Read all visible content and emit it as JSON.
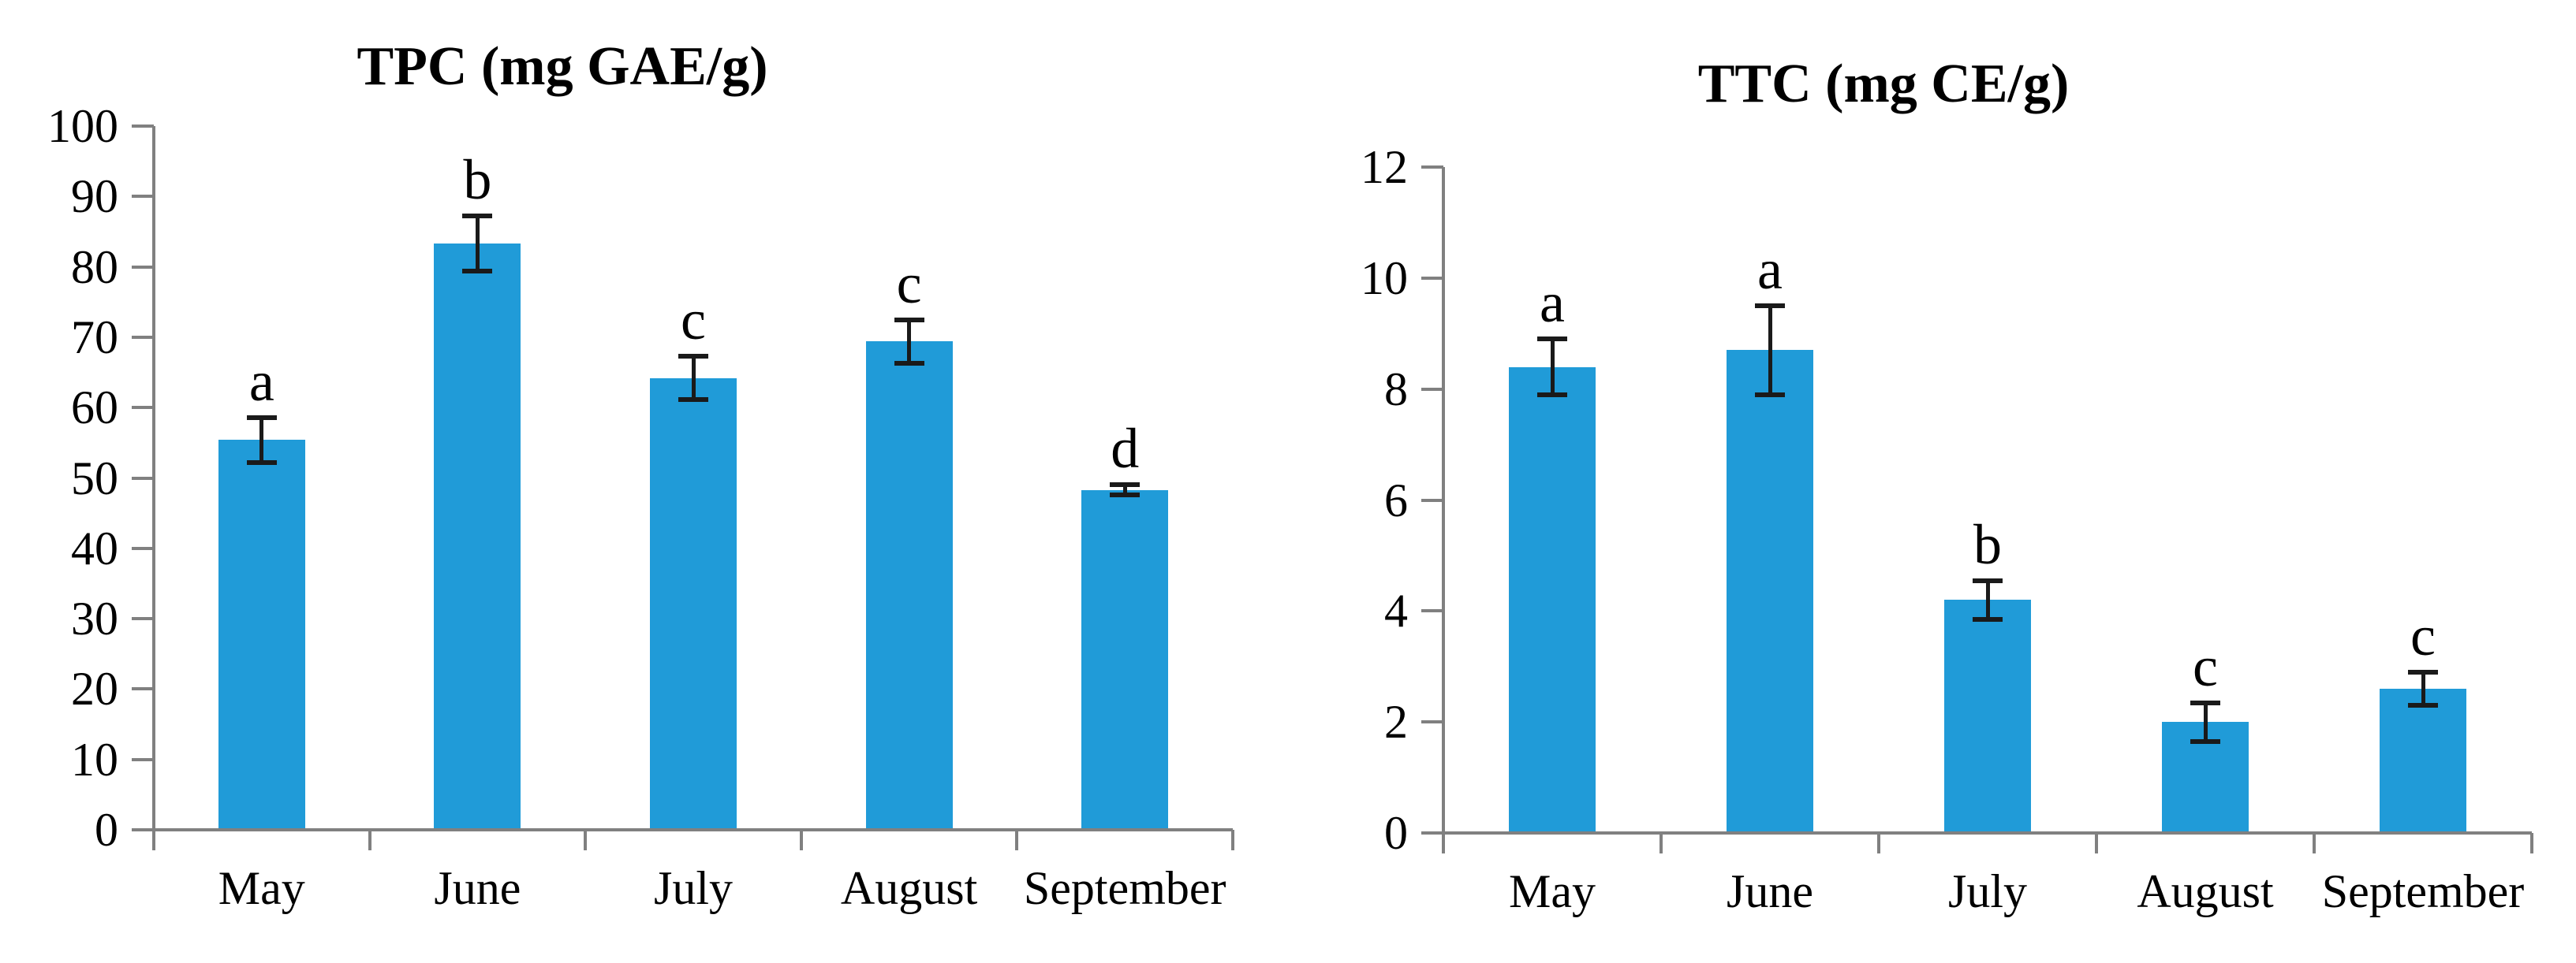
{
  "figure": {
    "background": "#ffffff",
    "axis_color": "#808080",
    "error_bar_color": "#1a1a1a",
    "text_color": "#000000"
  },
  "chart_data": [
    {
      "type": "bar",
      "title": "TPC (mg GAE/g)",
      "categories": [
        "May",
        "June",
        "July",
        "August",
        "September"
      ],
      "values": [
        55.4,
        83.3,
        64.2,
        69.4,
        48.3
      ],
      "errors": [
        3.2,
        3.9,
        3.1,
        3.1,
        0.7
      ],
      "sig_letters": [
        "a",
        "b",
        "c",
        "c",
        "d"
      ],
      "ylim": [
        0,
        100
      ],
      "ytick_step": 10,
      "ytick_labels": [
        "0",
        "10",
        "20",
        "30",
        "40",
        "50",
        "60",
        "70",
        "80",
        "90",
        "100"
      ],
      "xlabel": "",
      "ylabel": "",
      "grid": false,
      "legend": null,
      "bar_color": "#209BD8"
    },
    {
      "type": "bar",
      "title": "TTC (mg CE/g)",
      "categories": [
        "May",
        "June",
        "July",
        "August",
        "September"
      ],
      "values": [
        8.4,
        8.7,
        4.2,
        2.0,
        2.6
      ],
      "errors": [
        0.5,
        0.8,
        0.35,
        0.35,
        0.3
      ],
      "sig_letters": [
        "a",
        "a",
        "b",
        "c",
        "c"
      ],
      "ylim": [
        0,
        12
      ],
      "ytick_step": 2,
      "ytick_labels": [
        "0",
        "2",
        "4",
        "6",
        "8",
        "10",
        "12"
      ],
      "xlabel": "",
      "ylabel": "",
      "grid": false,
      "legend": null,
      "bar_color": "#209BD8"
    }
  ]
}
